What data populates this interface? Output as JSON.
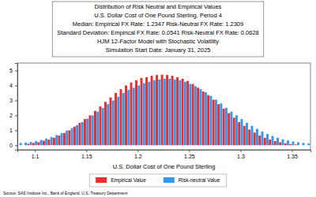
{
  "chart_data": {
    "type": "bar",
    "title": "Distribution of Risk Neutral and Empirical Values",
    "subtitle": [
      "U.S. Dollar Cost of One Pound Sterling, Period 4",
      "Median: Empirical FX Rate:  1.2347   Risk-Neutral FX Rate:  1.2309",
      "Standard Deviation: Empirical FX Rate:  0.0541   Risk-Neutral FX Rate:  0.0628",
      "HJM 12-Factor Model with Stochastic Volatility",
      "Simulation Start Date: January 31, 2025"
    ],
    "x_label": "U.S. Dollar Cost of One Pound Sterling",
    "source": "Source: SAS Institute Inc., Bank of England, U.S. Treasury Department",
    "x": [
      1.085,
      1.09,
      1.095,
      1.1,
      1.105,
      1.11,
      1.115,
      1.12,
      1.125,
      1.13,
      1.135,
      1.14,
      1.145,
      1.15,
      1.155,
      1.16,
      1.165,
      1.17,
      1.175,
      1.18,
      1.185,
      1.19,
      1.195,
      1.2,
      1.205,
      1.21,
      1.215,
      1.22,
      1.225,
      1.23,
      1.235,
      1.24,
      1.245,
      1.25,
      1.255,
      1.26,
      1.265,
      1.27,
      1.275,
      1.28,
      1.285,
      1.29,
      1.295,
      1.3,
      1.305,
      1.31,
      1.315,
      1.32,
      1.325,
      1.33,
      1.335,
      1.34,
      1.345,
      1.35,
      1.355,
      1.36,
      1.365
    ],
    "series": [
      {
        "name": "Empirical Value",
        "color": "#ee2c2c",
        "values": [
          0,
          0,
          0.1,
          0.15,
          0.2,
          0.3,
          0.38,
          0.5,
          0.65,
          0.82,
          1.0,
          1.25,
          1.5,
          1.75,
          2.0,
          2.3,
          2.6,
          2.9,
          3.2,
          3.5,
          3.75,
          4.0,
          4.2,
          4.35,
          4.5,
          4.55,
          4.65,
          4.7,
          4.72,
          4.7,
          4.65,
          4.55,
          4.45,
          4.3,
          4.1,
          3.85,
          3.6,
          3.35,
          3.05,
          2.75,
          2.45,
          2.15,
          1.85,
          1.55,
          1.3,
          1.05,
          0.85,
          0.65,
          0.5,
          0.38,
          0.28,
          0.2,
          0.12,
          0.08,
          0.05,
          0,
          0
        ]
      },
      {
        "name": "Risk-neutral Value",
        "color": "#3399ee",
        "values": [
          0.15,
          0.18,
          0.22,
          0.28,
          0.35,
          0.45,
          0.55,
          0.68,
          0.82,
          0.98,
          1.15,
          1.35,
          1.55,
          1.78,
          2.0,
          2.25,
          2.5,
          2.75,
          3.0,
          3.25,
          3.5,
          3.7,
          3.85,
          4.0,
          4.15,
          4.25,
          4.35,
          4.4,
          4.45,
          4.45,
          4.4,
          4.35,
          4.25,
          4.1,
          3.95,
          3.75,
          3.55,
          3.3,
          3.05,
          2.8,
          2.5,
          2.25,
          2.0,
          1.75,
          1.5,
          1.3,
          1.1,
          0.92,
          0.75,
          0.62,
          0.5,
          0.4,
          0.32,
          0.25,
          0.2,
          0.16,
          0.12
        ]
      }
    ],
    "xlim": [
      1.083,
      1.368
    ],
    "xticks": [
      1.1,
      1.15,
      1.2,
      1.25,
      1.3,
      1.35
    ],
    "ylim": [
      -0.3,
      5.5
    ],
    "yticks": [
      0,
      1,
      2,
      3,
      4,
      5
    ],
    "grid": false,
    "legend": "bottom"
  }
}
